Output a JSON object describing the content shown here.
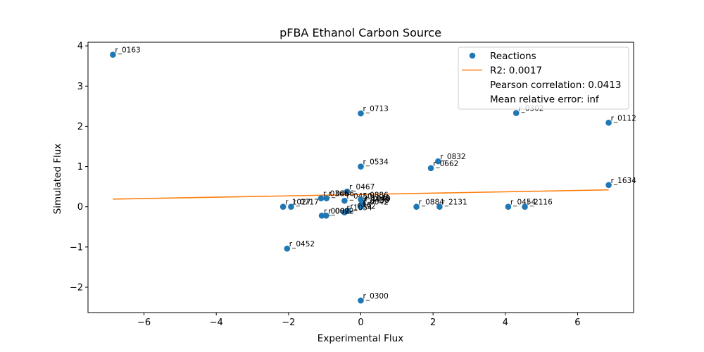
{
  "chart_data": {
    "type": "scatter",
    "title": "pFBA Ethanol Carbon Source",
    "xlabel": "Experimental Flux",
    "ylabel": "Simulated Flux",
    "xlim": [
      -7.55,
      7.55
    ],
    "ylim": [
      -2.63,
      4.09
    ],
    "xticks": [
      -6,
      -4,
      -2,
      0,
      2,
      4,
      6
    ],
    "xtick_labels": [
      "−6",
      "−4",
      "−2",
      "0",
      "2",
      "4",
      "6"
    ],
    "yticks": [
      -2,
      -1,
      0,
      1,
      2,
      3,
      4
    ],
    "ytick_labels": [
      "−2",
      "−1",
      "0",
      "1",
      "2",
      "3",
      "4"
    ],
    "grid": false,
    "legend_position": "top-right",
    "legend": {
      "entries": [
        {
          "label": "Reactions",
          "kind": "marker"
        },
        {
          "label": "R2: 0.0017",
          "kind": "line"
        },
        {
          "label": "Pearson correlation: 0.0413",
          "kind": "none"
        },
        {
          "label": "Mean relative error: inf",
          "kind": "none"
        }
      ]
    },
    "colors": {
      "points": "#1f77b4",
      "fit": "#ff7f0e"
    },
    "series": [
      {
        "name": "Reactions",
        "kind": "scatter",
        "points": [
          {
            "x": -6.86,
            "y": 3.78,
            "label": "r_0163"
          },
          {
            "x": 0.0,
            "y": 2.32,
            "label": "r_0713"
          },
          {
            "x": 4.3,
            "y": 2.33,
            "label": "r_0302"
          },
          {
            "x": 6.86,
            "y": 2.09,
            "label": "r_0112"
          },
          {
            "x": 2.14,
            "y": 1.13,
            "label": "r_0832"
          },
          {
            "x": 1.94,
            "y": 0.96,
            "label": "r_0662"
          },
          {
            "x": 0.0,
            "y": 1.0,
            "label": "r_0534"
          },
          {
            "x": 6.86,
            "y": 0.54,
            "label": "r_1634"
          },
          {
            "x": -0.38,
            "y": 0.38,
            "label": "r_0467"
          },
          {
            "x": -1.1,
            "y": 0.21,
            "label": "r_0366"
          },
          {
            "x": -0.95,
            "y": 0.21,
            "label": "r_0466"
          },
          {
            "x": -0.45,
            "y": 0.15,
            "label": "r_0450"
          },
          {
            "x": 0.0,
            "y": 0.18,
            "label": "r_0886"
          },
          {
            "x": 0.04,
            "y": 0.1,
            "label": "r_1048"
          },
          {
            "x": 0.06,
            "y": 0.08,
            "label": "r_1049"
          },
          {
            "x": 0.02,
            "y": 0.05,
            "label": "r_0438"
          },
          {
            "x": -2.15,
            "y": 0.0,
            "label": "r_1027"
          },
          {
            "x": -1.93,
            "y": 0.0,
            "label": "r_0717"
          },
          {
            "x": -0.35,
            "y": -0.1,
            "label": "r_0892"
          },
          {
            "x": 0.0,
            "y": 0.0,
            "label": "r_0042"
          },
          {
            "x": -0.45,
            "y": -0.14,
            "label": "r_1054"
          },
          {
            "x": -1.08,
            "y": -0.22,
            "label": "r_0082"
          },
          {
            "x": -0.96,
            "y": -0.22,
            "label": "r_0092"
          },
          {
            "x": 1.54,
            "y": 0.0,
            "label": "r_0884"
          },
          {
            "x": 2.18,
            "y": 0.0,
            "label": "r_2131"
          },
          {
            "x": 4.08,
            "y": 0.0,
            "label": "r_0454"
          },
          {
            "x": 4.54,
            "y": 0.0,
            "label": "r_2116"
          },
          {
            "x": -2.04,
            "y": -1.04,
            "label": "r_0452"
          },
          {
            "x": 0.0,
            "y": -2.33,
            "label": "r_0300"
          }
        ]
      },
      {
        "name": "R2: 0.0017",
        "kind": "line",
        "points": [
          {
            "x": -6.86,
            "y": 0.19
          },
          {
            "x": 6.86,
            "y": 0.42
          }
        ]
      }
    ]
  }
}
